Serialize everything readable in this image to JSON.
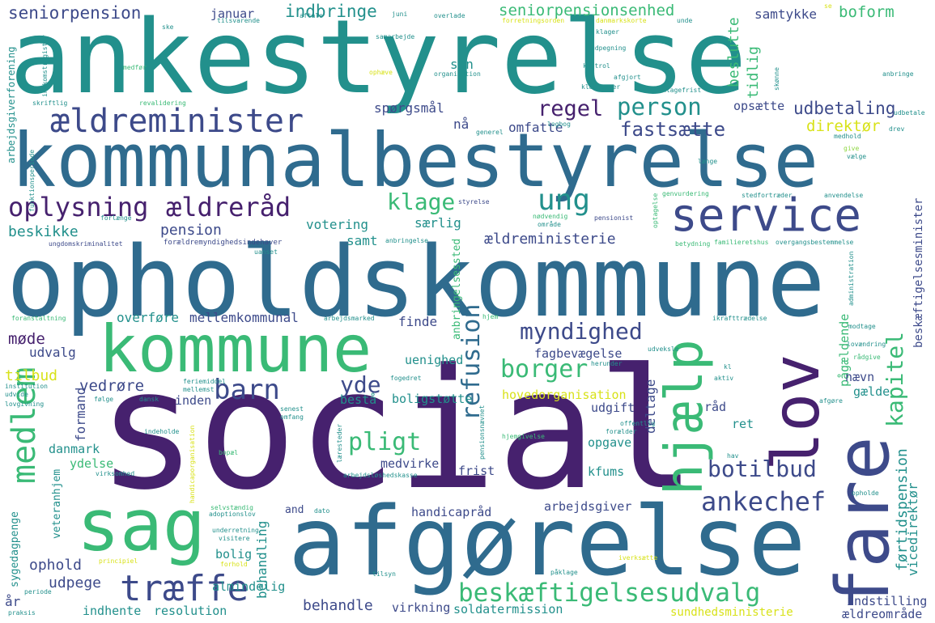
{
  "palette": {
    "background": "#ffffff",
    "purple": "#46216e",
    "indigo": "#3d4a8a",
    "blue": "#2f6b8e",
    "teal": "#22908c",
    "green": "#3aba76",
    "lime": "#8fd744",
    "yellow": "#d8e219"
  },
  "words": [
    {
      "id": "ankestyrelse",
      "text": "ankestyrelse",
      "color": "teal"
    },
    {
      "id": "kommunalbestyrelse",
      "text": "kommunalbestyrelse",
      "color": "blue"
    },
    {
      "id": "opholdskommune",
      "text": "opholdskommune",
      "color": "blue"
    },
    {
      "id": "social",
      "text": "social",
      "color": "purple"
    },
    {
      "id": "afgorelse",
      "text": "afgørelse",
      "color": "blue"
    },
    {
      "id": "kommune",
      "text": "kommune",
      "color": "green"
    },
    {
      "id": "sag",
      "text": "sag",
      "color": "green"
    },
    {
      "id": "service",
      "text": "service",
      "color": "indigo"
    },
    {
      "id": "fare",
      "text": "fare",
      "color": "indigo"
    },
    {
      "id": "lov",
      "text": "lov",
      "color": "purple"
    },
    {
      "id": "hjaelp",
      "text": "hjælp",
      "color": "green"
    },
    {
      "id": "aeldreminister",
      "text": "ældreminister",
      "color": "indigo"
    },
    {
      "id": "oplysning",
      "text": "oplysning",
      "color": "purple"
    },
    {
      "id": "aeldreraad",
      "text": "ældreråd",
      "color": "purple"
    },
    {
      "id": "person",
      "text": "person",
      "color": "teal"
    },
    {
      "id": "regel",
      "text": "regel",
      "color": "purple"
    },
    {
      "id": "fastsaette",
      "text": "fastsætte",
      "color": "indigo"
    },
    {
      "id": "ung",
      "text": "ung",
      "color": "teal"
    },
    {
      "id": "klage",
      "text": "klage",
      "color": "green"
    },
    {
      "id": "medlem",
      "text": "medlem",
      "color": "green"
    },
    {
      "id": "barn",
      "text": "barn",
      "color": "indigo"
    },
    {
      "id": "yde",
      "text": "yde",
      "color": "indigo"
    },
    {
      "id": "pligt",
      "text": "pligt",
      "color": "green"
    },
    {
      "id": "refusion",
      "text": "refusion",
      "color": "blue"
    },
    {
      "id": "borger",
      "text": "borger",
      "color": "green"
    },
    {
      "id": "myndighed",
      "text": "myndighed",
      "color": "indigo"
    },
    {
      "id": "botilbud",
      "text": "botilbud",
      "color": "indigo"
    },
    {
      "id": "ankechef",
      "text": "ankechef",
      "color": "indigo"
    },
    {
      "id": "traeffe",
      "text": "træffe",
      "color": "indigo"
    },
    {
      "id": "beskaeftigelsesudvalg",
      "text": "beskæftigelsesudvalg",
      "color": "green"
    },
    {
      "id": "kapitel",
      "text": "kapitel",
      "color": "green"
    },
    {
      "id": "seniorpension",
      "text": "seniorpension",
      "color": "indigo"
    },
    {
      "id": "indbringe",
      "text": "indbringe",
      "color": "teal"
    },
    {
      "id": "januar",
      "text": "januar",
      "color": "indigo"
    },
    {
      "id": "seniorpensionsenhed",
      "text": "seniorpensionsenhed",
      "color": "green"
    },
    {
      "id": "samtykke",
      "text": "samtykke",
      "color": "indigo"
    },
    {
      "id": "boform",
      "text": "boform",
      "color": "green"
    },
    {
      "id": "beslutte",
      "text": "beslutte",
      "color": "green"
    },
    {
      "id": "tidlig",
      "text": "tidlig",
      "color": "green"
    },
    {
      "id": "udbetaling",
      "text": "udbetaling",
      "color": "indigo"
    },
    {
      "id": "opsaette",
      "text": "opsætte",
      "color": "indigo"
    },
    {
      "id": "direktor",
      "text": "direktør",
      "color": "yellow"
    },
    {
      "id": "sporgsmaal",
      "text": "spørgsmål",
      "color": "indigo"
    },
    {
      "id": "naa",
      "text": "nå",
      "color": "indigo"
    },
    {
      "id": "omfatte",
      "text": "omfatte",
      "color": "indigo"
    },
    {
      "id": "sin",
      "text": "sin",
      "color": "teal"
    },
    {
      "id": "beskikke",
      "text": "beskikke",
      "color": "teal"
    },
    {
      "id": "pension",
      "text": "pension",
      "color": "indigo"
    },
    {
      "id": "votering",
      "text": "votering",
      "color": "teal"
    },
    {
      "id": "saerlig",
      "text": "særlig",
      "color": "teal"
    },
    {
      "id": "samt",
      "text": "samt",
      "color": "teal"
    },
    {
      "id": "aeldreministerie",
      "text": "ældreministerie",
      "color": "indigo"
    },
    {
      "id": "overfore",
      "text": "overføre",
      "color": "teal"
    },
    {
      "id": "mellemkommunal",
      "text": "mellemkommunal",
      "color": "indigo"
    },
    {
      "id": "finde",
      "text": "finde",
      "color": "indigo"
    },
    {
      "id": "made",
      "text": "møde",
      "color": "purple"
    },
    {
      "id": "udvalg",
      "text": "udvalg",
      "color": "indigo"
    },
    {
      "id": "tilbud",
      "text": "tilbud",
      "color": "yellow"
    },
    {
      "id": "uenighed",
      "text": "uenighed",
      "color": "teal"
    },
    {
      "id": "fagbevaegelse",
      "text": "fagbevægelse",
      "color": "indigo"
    },
    {
      "id": "deltage",
      "text": "deltage",
      "color": "indigo"
    },
    {
      "id": "vedrore",
      "text": "vedrøre",
      "color": "indigo"
    },
    {
      "id": "inden",
      "text": "inden",
      "color": "indigo"
    },
    {
      "id": "bestaa",
      "text": "bestå",
      "color": "teal"
    },
    {
      "id": "boligstotte",
      "text": "boligstøtte",
      "color": "teal"
    },
    {
      "id": "hovedorganisation",
      "text": "hovedorganisation",
      "color": "yellow"
    },
    {
      "id": "udgift",
      "text": "udgift",
      "color": "indigo"
    },
    {
      "id": "paagaeldende",
      "text": "pågældende",
      "color": "green"
    },
    {
      "id": "naevn",
      "text": "nævn",
      "color": "indigo"
    },
    {
      "id": "gaelde",
      "text": "gælde",
      "color": "teal"
    },
    {
      "id": "raad",
      "text": "råd",
      "color": "indigo"
    },
    {
      "id": "ret",
      "text": "ret",
      "color": "teal"
    },
    {
      "id": "formand",
      "text": "formand",
      "color": "indigo"
    },
    {
      "id": "danmark",
      "text": "danmark",
      "color": "teal"
    },
    {
      "id": "ydelse",
      "text": "ydelse",
      "color": "green"
    },
    {
      "id": "veteranhjem",
      "text": "veteranhjem",
      "color": "teal"
    },
    {
      "id": "opgave",
      "text": "opgave",
      "color": "teal"
    },
    {
      "id": "medvirke",
      "text": "medvirke",
      "color": "indigo"
    },
    {
      "id": "frist",
      "text": "frist",
      "color": "indigo"
    },
    {
      "id": "kfums",
      "text": "kfums",
      "color": "teal"
    },
    {
      "id": "fortidspension",
      "text": "førtidspension",
      "color": "teal"
    },
    {
      "id": "vicedirektor",
      "text": "vicedirektør",
      "color": "teal"
    },
    {
      "id": "beskaeftigelsesminister",
      "text": "beskæftigelsesminister",
      "color": "indigo"
    },
    {
      "id": "handicapraad",
      "text": "handicapråd",
      "color": "indigo"
    },
    {
      "id": "arbejdsgiver",
      "text": "arbejdsgiver",
      "color": "indigo"
    },
    {
      "id": "and",
      "text": "and",
      "color": "indigo"
    },
    {
      "id": "behandling",
      "text": "behandling",
      "color": "teal"
    },
    {
      "id": "bolig",
      "text": "bolig",
      "color": "teal"
    },
    {
      "id": "ophold",
      "text": "ophold",
      "color": "indigo"
    },
    {
      "id": "udpege",
      "text": "udpege",
      "color": "indigo"
    },
    {
      "id": "almindelig",
      "text": "almindelig",
      "color": "teal"
    },
    {
      "id": "behandle",
      "text": "behandle",
      "color": "indigo"
    },
    {
      "id": "virkning",
      "text": "virkning",
      "color": "indigo"
    },
    {
      "id": "soldatermission",
      "text": "soldatermission",
      "color": "teal"
    },
    {
      "id": "indhente",
      "text": "indhente",
      "color": "teal"
    },
    {
      "id": "resolution",
      "text": "resolution",
      "color": "teal"
    },
    {
      "id": "aar",
      "text": "år",
      "color": "indigo"
    },
    {
      "id": "sygedagpenge",
      "text": "sygedagpenge",
      "color": "teal"
    },
    {
      "id": "sundhedsministerie",
      "text": "sundhedsministerie",
      "color": "yellow"
    },
    {
      "id": "indstilling",
      "text": "indstilling",
      "color": "indigo"
    },
    {
      "id": "aeldreomraade",
      "text": "ældreområde",
      "color": "indigo"
    },
    {
      "id": "arbejdsgiverforening",
      "text": "arbejdsgiverforening",
      "color": "teal"
    },
    {
      "id": "ungdomskriminalitet",
      "text": "ungdomskriminalitet",
      "color": "indigo"
    },
    {
      "id": "foraeldremyndighedsindehaver",
      "text": "forældremyndighedsindehaver",
      "color": "indigo"
    },
    {
      "id": "anbringelsessted",
      "text": "anbringelsessted",
      "color": "green"
    },
    {
      "id": "aftale",
      "text": "aftale",
      "color": "teal"
    },
    {
      "id": "ske",
      "text": "ske",
      "color": "teal"
    },
    {
      "id": "juni",
      "text": "juni",
      "color": "teal"
    },
    {
      "id": "overlade",
      "text": "overlade",
      "color": "teal"
    },
    {
      "id": "klagefrist",
      "text": "klagefrist",
      "color": "teal"
    },
    {
      "id": "kontrol",
      "text": "kontrol",
      "color": "teal"
    },
    {
      "id": "organisation",
      "text": "organisation",
      "color": "teal"
    },
    {
      "id": "anbringe",
      "text": "anbringe",
      "color": "teal"
    },
    {
      "id": "udbetale",
      "text": "udbetale",
      "color": "teal"
    },
    {
      "id": "drev",
      "text": "drev",
      "color": "teal"
    },
    {
      "id": "medhold",
      "text": "medhold",
      "color": "teal"
    },
    {
      "id": "vaelge",
      "text": "vælge",
      "color": "teal"
    },
    {
      "id": "laenge",
      "text": "længe",
      "color": "teal"
    },
    {
      "id": "genvurdering",
      "text": "genvurdering",
      "color": "green"
    },
    {
      "id": "stedfortraeder",
      "text": "stedfortræder",
      "color": "teal"
    },
    {
      "id": "anvendelse",
      "text": "anvendelse",
      "color": "teal"
    },
    {
      "id": "styrelse",
      "text": "styrelse",
      "color": "indigo"
    },
    {
      "id": "pensionist",
      "text": "pensionist",
      "color": "indigo"
    },
    {
      "id": "familieretshus",
      "text": "familieretshus",
      "color": "green"
    },
    {
      "id": "overgangsbestemmelse",
      "text": "overgangsbestemmelse",
      "color": "teal"
    },
    {
      "id": "foranstaltning",
      "text": "foranstaltning",
      "color": "green"
    },
    {
      "id": "arbejdsmarked",
      "text": "arbejdsmarked",
      "color": "teal"
    },
    {
      "id": "ikrafttraedelse",
      "text": "ikrafttrædelse",
      "color": "teal"
    },
    {
      "id": "modtage",
      "text": "modtage",
      "color": "teal"
    },
    {
      "id": "lovaendring",
      "text": "lovændring",
      "color": "teal"
    },
    {
      "id": "raadgive",
      "text": "rådgive",
      "color": "green"
    },
    {
      "id": "udveksle",
      "text": "udveksle",
      "color": "teal"
    },
    {
      "id": "herunder",
      "text": "herunder",
      "color": "teal"
    },
    {
      "id": "fogedret",
      "text": "fogedret",
      "color": "teal"
    },
    {
      "id": "feriemiddel",
      "text": "feriemiddel",
      "color": "teal"
    },
    {
      "id": "institution",
      "text": "institution",
      "color": "teal"
    },
    {
      "id": "udvide",
      "text": "udvide",
      "color": "teal"
    },
    {
      "id": "lovgivning",
      "text": "lovgivning",
      "color": "teal"
    },
    {
      "id": "folge",
      "text": "følge",
      "color": "teal"
    },
    {
      "id": "dansk",
      "text": "dansk",
      "color": "teal"
    },
    {
      "id": "indeholde",
      "text": "indeholde",
      "color": "teal"
    },
    {
      "id": "bopael",
      "text": "bopæl",
      "color": "green"
    },
    {
      "id": "hjemgivelse",
      "text": "hjemgivelse",
      "color": "green"
    },
    {
      "id": "foraelder",
      "text": "forælder",
      "color": "teal"
    },
    {
      "id": "offentlig",
      "text": "offentlig",
      "color": "teal"
    },
    {
      "id": "hav",
      "text": "hav",
      "color": "teal"
    },
    {
      "id": "adoptionslov",
      "text": "adoptionslov",
      "color": "teal"
    },
    {
      "id": "selvstaendig",
      "text": "selvstændig",
      "color": "green"
    },
    {
      "id": "dato",
      "text": "dato",
      "color": "teal"
    },
    {
      "id": "underretning",
      "text": "underretning",
      "color": "teal"
    },
    {
      "id": "visitere",
      "text": "visitere",
      "color": "teal"
    },
    {
      "id": "principiel",
      "text": "principiel",
      "color": "yellow"
    },
    {
      "id": "forhold",
      "text": "forhold",
      "color": "yellow"
    },
    {
      "id": "tilsyn",
      "text": "tilsyn",
      "color": "teal"
    },
    {
      "id": "paaklage",
      "text": "påklage",
      "color": "teal"
    },
    {
      "id": "iverksaette",
      "text": "iverksætte",
      "color": "yellow"
    },
    {
      "id": "periode",
      "text": "periode",
      "color": "teal"
    },
    {
      "id": "praksis",
      "text": "praksis",
      "color": "teal"
    },
    {
      "id": "virksomhed",
      "text": "virksomhed",
      "color": "teal"
    },
    {
      "id": "arbejdsloshedskasse",
      "text": "arbejdsløshedskasse",
      "color": "teal"
    },
    {
      "id": "laerestager",
      "text": "læresteder",
      "color": "teal"
    },
    {
      "id": "handicaporganisation",
      "text": "handicaporganisation",
      "color": "yellow"
    },
    {
      "id": "pensionsnaevnet",
      "text": "pensionsnævnet",
      "color": "teal"
    },
    {
      "id": "senest",
      "text": "senest",
      "color": "teal"
    },
    {
      "id": "omfang",
      "text": "omfang",
      "color": "teal"
    },
    {
      "id": "mellemst",
      "text": "mellemst",
      "color": "teal"
    },
    {
      "id": "kl",
      "text": "kl",
      "color": "teal"
    },
    {
      "id": "aktiv",
      "text": "aktiv",
      "color": "teal"
    },
    {
      "id": "afgore",
      "text": "afgøre",
      "color": "teal"
    },
    {
      "id": "opholde",
      "text": "opholde",
      "color": "teal"
    },
    {
      "id": "administration",
      "text": "administration",
      "color": "teal"
    },
    {
      "id": "forlaenge",
      "text": "forlænge",
      "color": "teal"
    },
    {
      "id": "uanset",
      "text": "uanset",
      "color": "teal"
    },
    {
      "id": "anbringelse",
      "text": "anbringelse",
      "color": "teal"
    },
    {
      "id": "omraade",
      "text": "område",
      "color": "teal"
    },
    {
      "id": "nodvendig",
      "text": "nødvendig",
      "color": "green"
    },
    {
      "id": "betydning",
      "text": "betydning",
      "color": "green"
    },
    {
      "id": "optagelse",
      "text": "optagelse",
      "color": "green"
    },
    {
      "id": "funktionsperiode",
      "text": "funktionsperiode",
      "color": "teal"
    },
    {
      "id": "indkomstregister",
      "text": "indkomstregister",
      "color": "teal"
    },
    {
      "id": "medfor",
      "text": "medfør",
      "color": "green"
    },
    {
      "id": "skriftlig",
      "text": "skriftlig",
      "color": "teal"
    },
    {
      "id": "revalidering",
      "text": "revalidering",
      "color": "green"
    },
    {
      "id": "give",
      "text": "give",
      "color": "lime"
    },
    {
      "id": "logbog",
      "text": "logbog",
      "color": "teal"
    },
    {
      "id": "generel",
      "text": "generel",
      "color": "teal"
    },
    {
      "id": "opheve",
      "text": "ophæve",
      "color": "yellow"
    },
    {
      "id": "samarbejde",
      "text": "samarbejde",
      "color": "teal"
    },
    {
      "id": "tilsvarende",
      "text": "tilsvarende",
      "color": "teal"
    },
    {
      "id": "forretningsorden",
      "text": "forretningsorden",
      "color": "yellow"
    },
    {
      "id": "danmarkskorte",
      "text": "danmarkskorte",
      "color": "yellow"
    },
    {
      "id": "unde",
      "text": "unde",
      "color": "teal"
    },
    {
      "id": "udpegning",
      "text": "udpegning",
      "color": "teal"
    },
    {
      "id": "klager",
      "text": "klager",
      "color": "teal"
    },
    {
      "id": "klagesager",
      "text": "klagesager",
      "color": "teal"
    },
    {
      "id": "afgjort",
      "text": "afgjort",
      "color": "teal"
    },
    {
      "id": "skonne",
      "text": "skønne",
      "color": "teal"
    },
    {
      "id": "se",
      "text": "se",
      "color": "yellow"
    },
    {
      "id": "hjem",
      "text": "hjem",
      "color": "green"
    }
  ]
}
